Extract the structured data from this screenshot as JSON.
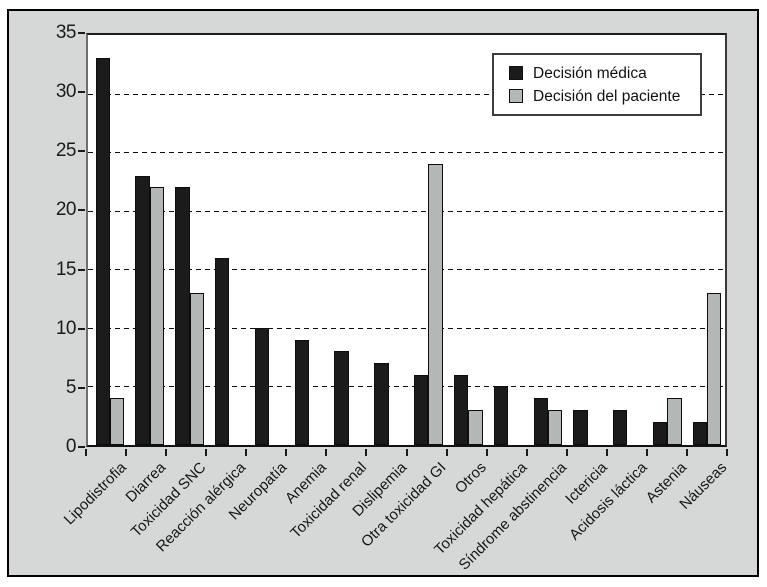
{
  "figure": {
    "background_color": "#d6d8d7",
    "plot_background": "#ffffff",
    "outer_border_color": "#000000",
    "gridline_style": "dashed"
  },
  "legend": {
    "position": "top-right",
    "entries": [
      {
        "label": "Decisión médica",
        "swatch": "black-square"
      },
      {
        "label": "Decisión del paciente",
        "swatch": "gray-square"
      }
    ]
  },
  "chart_data": {
    "type": "bar",
    "title": "",
    "xlabel": "",
    "ylabel": "",
    "ylim": [
      0,
      35
    ],
    "ytick_step": 5,
    "yticks": [
      0,
      5,
      10,
      15,
      20,
      25,
      30,
      35
    ],
    "grid": "horizontal dashed",
    "legend_position": "top-right inside plot",
    "categories": [
      "Lipodistrofia",
      "Diarrea",
      "Toxicidad SNC",
      "Reacción alérgica",
      "Neuropatía",
      "Anemia",
      "Toxicidad renal",
      "Dislipemia",
      "Otra toxicidad GI",
      "Otros",
      "Toxicidad hepática",
      "Síndrome abstinencia",
      "Ictericia",
      "Acidosis láctica",
      "Astenia",
      "Náuseas"
    ],
    "series": [
      {
        "name": "Decisión médica",
        "color": "#1b1b1b",
        "values": [
          33,
          23,
          22,
          16,
          10,
          9,
          8,
          7,
          6,
          6,
          5,
          4,
          3,
          3,
          2,
          2
        ]
      },
      {
        "name": "Decisión del paciente",
        "color": "#b3b7b6",
        "values": [
          4,
          22,
          13,
          0,
          0,
          0,
          0,
          0,
          24,
          3,
          0,
          3,
          0,
          0,
          4,
          13
        ]
      }
    ]
  }
}
